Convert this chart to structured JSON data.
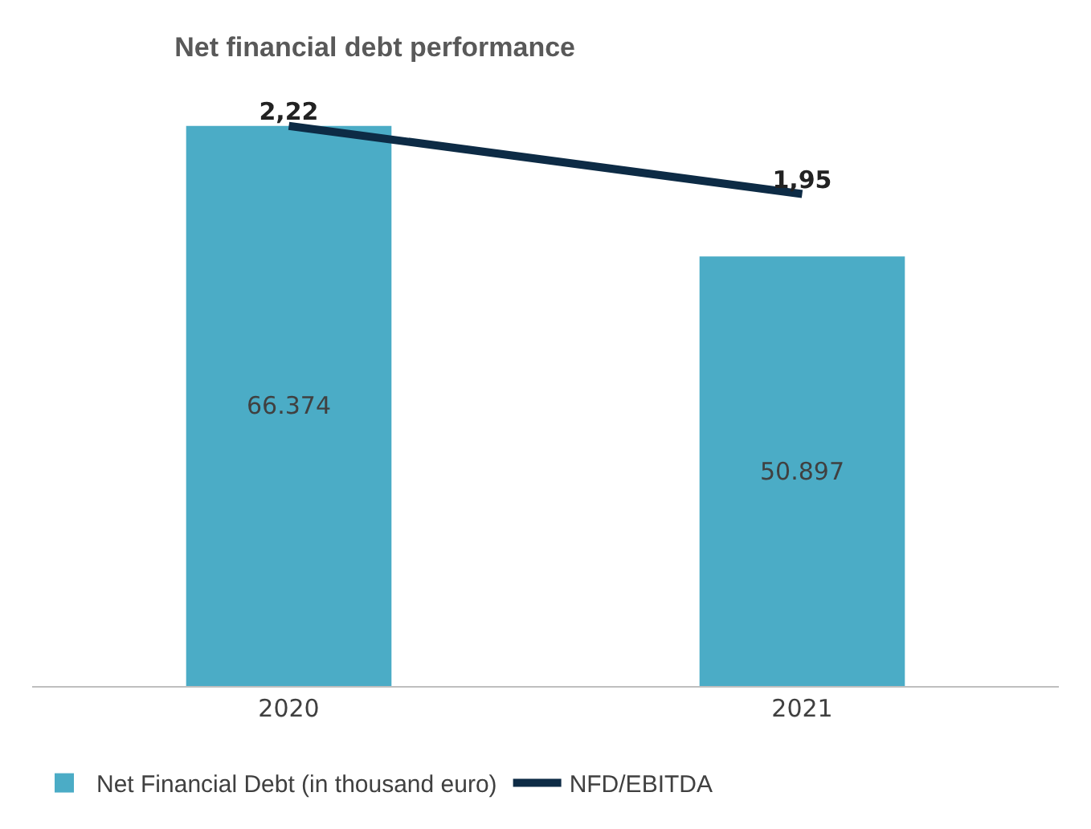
{
  "chart_data": {
    "type": "bar",
    "title": "Net financial debt performance",
    "categories": [
      "2020",
      "2021"
    ],
    "series": [
      {
        "name": "Net Financial Debt (in thousand euro)",
        "color": "#4bacc6",
        "values": [
          66374,
          50897
        ],
        "value_labels": [
          "66.374",
          "50.897"
        ]
      },
      {
        "name": "NFD/EBITDA",
        "type": "line",
        "axis": "y2",
        "color": "#0d2b45",
        "values": [
          2.22,
          1.95
        ],
        "value_labels": [
          "2,22",
          "1,95"
        ],
        "marker": "none"
      }
    ],
    "grid": false,
    "legend": "bottom"
  }
}
